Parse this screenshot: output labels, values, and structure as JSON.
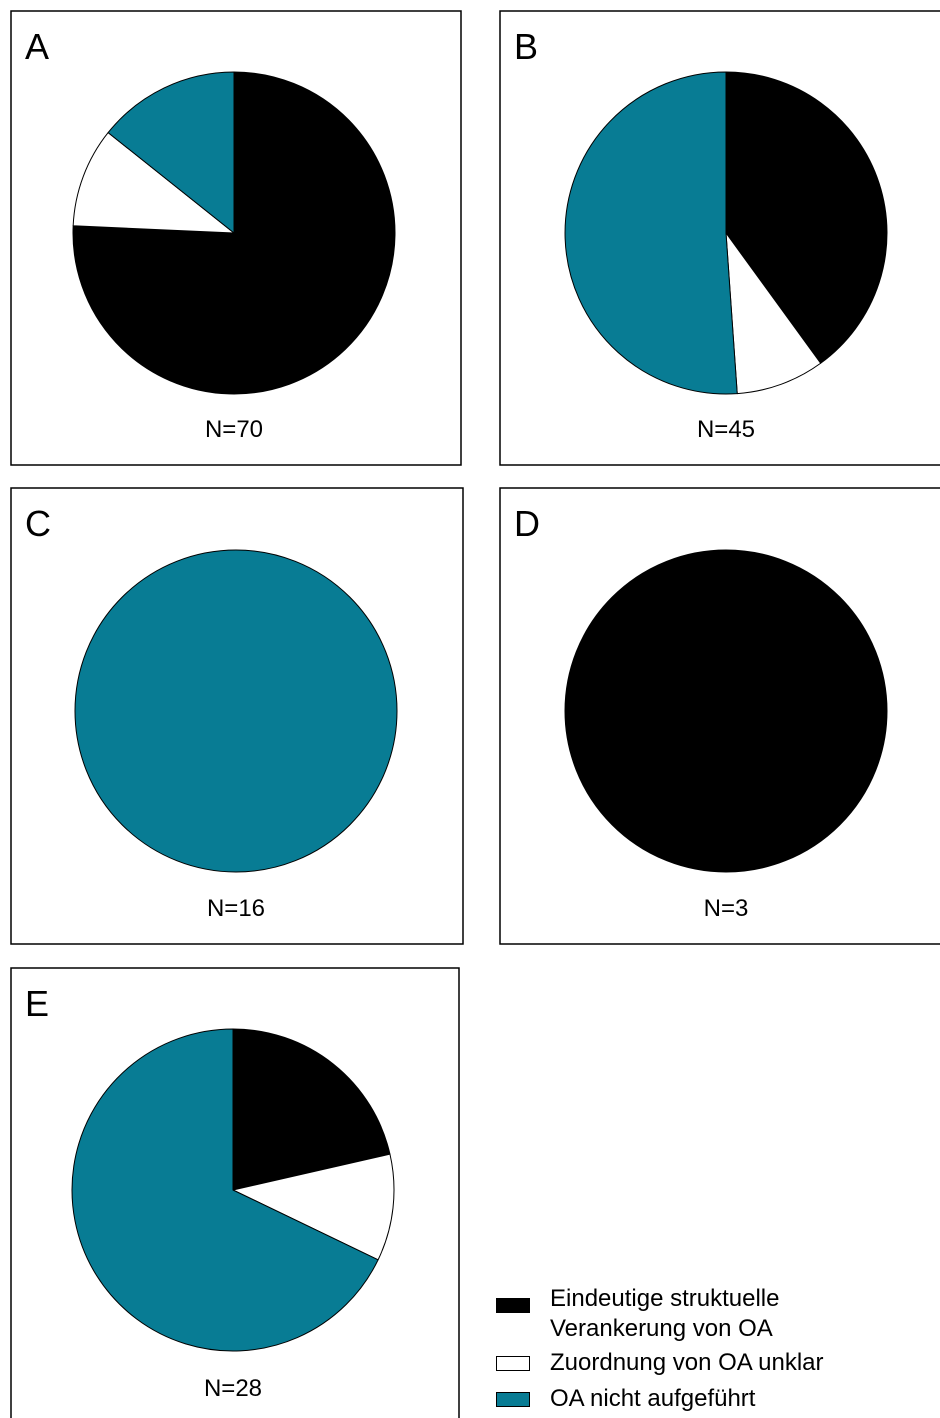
{
  "chart_data": [
    {
      "type": "pie",
      "panel_label": "A",
      "n_label": "N=70",
      "series": [
        {
          "name": "Eindeutige struktuelle Verankerung von OA",
          "value": 53
        },
        {
          "name": "Zuordnung von OA unklar",
          "value": 7
        },
        {
          "name": "OA nicht aufgeführt",
          "value": 10
        }
      ]
    },
    {
      "type": "pie",
      "panel_label": "B",
      "n_label": "N=45",
      "series": [
        {
          "name": "Eindeutige struktuelle Verankerung von OA",
          "value": 18
        },
        {
          "name": "Zuordnung von OA unklar",
          "value": 4
        },
        {
          "name": "OA nicht aufgeführt",
          "value": 23
        }
      ]
    },
    {
      "type": "pie",
      "panel_label": "C",
      "n_label": "N=16",
      "series": [
        {
          "name": "Eindeutige struktuelle Verankerung von OA",
          "value": 0
        },
        {
          "name": "Zuordnung von OA unklar",
          "value": 0
        },
        {
          "name": "OA nicht aufgeführt",
          "value": 16
        }
      ]
    },
    {
      "type": "pie",
      "panel_label": "D",
      "n_label": "N=3",
      "series": [
        {
          "name": "Eindeutige struktuelle Verankerung von OA",
          "value": 3
        },
        {
          "name": "Zuordnung von OA unklar",
          "value": 0
        },
        {
          "name": "OA nicht aufgeführt",
          "value": 0
        }
      ]
    },
    {
      "type": "pie",
      "panel_label": "E",
      "n_label": "N=28",
      "series": [
        {
          "name": "Eindeutige struktuelle Verankerung von OA",
          "value": 6
        },
        {
          "name": "Zuordnung von OA unklar",
          "value": 3
        },
        {
          "name": "OA nicht aufgeführt",
          "value": 19
        }
      ]
    }
  ],
  "legend": {
    "items": [
      {
        "line1": "Eindeutige struktuelle",
        "line2": "Verankerung von OA",
        "color": "#000000"
      },
      {
        "line1": "Zuordnung von OA unklar",
        "line2": "",
        "color": "#ffffff"
      },
      {
        "line1": "OA nicht aufgeführt",
        "line2": "",
        "color": "#087c94"
      }
    ]
  }
}
